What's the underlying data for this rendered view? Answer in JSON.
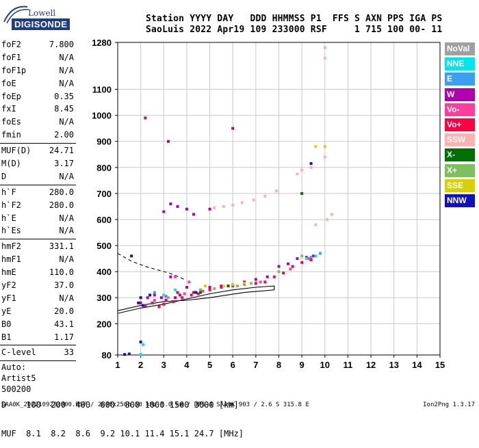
{
  "logo": {
    "line1": "Lowell",
    "line2": "DIGISONDE"
  },
  "header": {
    "line1": "Station YYYY DAY   DDD HHMMSS P1  FFS S AXN PPS IGA PS",
    "line2": "SaoLuis 2022 Apr19 109 233000 RSF     1 715 100 00- 11"
  },
  "params_group1": [
    {
      "name": "foF2",
      "value": "7.800"
    },
    {
      "name": "foF1",
      "value": "N/A"
    },
    {
      "name": "foF1p",
      "value": "N/A"
    },
    {
      "name": "foE",
      "value": "N/A"
    },
    {
      "name": "foEp",
      "value": "0.35"
    },
    {
      "name": "fxI",
      "value": "8.45"
    },
    {
      "name": "foEs",
      "value": "N/A"
    },
    {
      "name": "fmin",
      "value": "2.00"
    }
  ],
  "params_group2": [
    {
      "name": "MUF(D)",
      "value": "24.71"
    },
    {
      "name": "M(D)",
      "value": "3.17"
    },
    {
      "name": "D",
      "value": "N/A"
    }
  ],
  "params_group3": [
    {
      "name": "h`F",
      "value": "280.0"
    },
    {
      "name": "h`F2",
      "value": "280.0"
    },
    {
      "name": "h`E",
      "value": "N/A"
    },
    {
      "name": "h`Es",
      "value": "N/A"
    }
  ],
  "params_group4": [
    {
      "name": "hmF2",
      "value": "331.1"
    },
    {
      "name": "hmF1",
      "value": "N/A"
    },
    {
      "name": "hmE",
      "value": "110.0"
    },
    {
      "name": "yF2",
      "value": "37.0"
    },
    {
      "name": "yF1",
      "value": "N/A"
    },
    {
      "name": "yE",
      "value": "20.0"
    },
    {
      "name": "B0",
      "value": "43.1"
    },
    {
      "name": "B1",
      "value": "1.17"
    }
  ],
  "params_group5": [
    {
      "name": "C-level",
      "value": "33"
    }
  ],
  "auto": {
    "line1": "Auto:",
    "line2": "Artist5",
    "line3": "500200"
  },
  "legend": [
    {
      "label": "NoVal",
      "color": "#a0a0a0"
    },
    {
      "label": "NNE",
      "color": "#00e5ee"
    },
    {
      "label": "E",
      "color": "#3aa0f0"
    },
    {
      "label": "W",
      "color": "#b000b0"
    },
    {
      "label": "Vo-",
      "color": "#ff3d9a"
    },
    {
      "label": "Vo+",
      "color": "#ff0040"
    },
    {
      "label": "SSW",
      "color": "#ffb0b0"
    },
    {
      "label": "X-",
      "color": "#007000"
    },
    {
      "label": "X+",
      "color": "#7cc060"
    },
    {
      "label": "SSE",
      "color": "#d8d000"
    },
    {
      "label": "NNW",
      "color": "#1010c0"
    }
  ],
  "mufs": {
    "line1": "D    100  200  400  600  800 1000 1500 3000 [km]",
    "line2": "MUF  8.1  8.2  8.6  9.2 10.1 11.4 15.1 24.7 [MHz]"
  },
  "footer": {
    "left": "SAA0K_2022109233000.RSF / 280fx256h 50 kHz 5.0 km / DPS-4 SAA0K 903 / 2.6 S 315.8 E",
    "right": "Ion2Png 1.3.17"
  },
  "chart_data": {
    "type": "scatter",
    "title": "",
    "xlabel": "",
    "ylabel": "",
    "xlim": [
      1,
      15
    ],
    "ylim": [
      80,
      1280
    ],
    "x_ticks": [
      1,
      2,
      3,
      4,
      5,
      6,
      7,
      8,
      9,
      10,
      11,
      12,
      13,
      14,
      15
    ],
    "y_ticks": [
      80,
      200,
      300,
      400,
      500,
      600,
      700,
      800,
      900,
      1000,
      1100,
      1280
    ],
    "grid": true,
    "series": [
      {
        "name": "W",
        "color": "#b000b0",
        "points": [
          [
            2.0,
            280
          ],
          [
            2.3,
            300
          ],
          [
            2.6,
            310
          ],
          [
            2.9,
            300
          ],
          [
            3.1,
            290
          ],
          [
            3.3,
            380
          ],
          [
            3.5,
            300
          ],
          [
            3.7,
            310
          ],
          [
            4.0,
            340
          ],
          [
            4.3,
            320
          ],
          [
            4.6,
            330
          ],
          [
            5.0,
            340
          ],
          [
            5.5,
            345
          ],
          [
            6.0,
            350
          ],
          [
            6.5,
            360
          ],
          [
            7.0,
            370
          ],
          [
            7.5,
            380
          ],
          [
            8.0,
            420
          ],
          [
            8.4,
            430
          ],
          [
            8.8,
            450
          ],
          [
            9.2,
            455
          ],
          [
            9.5,
            460
          ],
          [
            3.0,
            630
          ],
          [
            3.3,
            660
          ],
          [
            3.6,
            650
          ],
          [
            4.0,
            640
          ],
          [
            4.3,
            620
          ],
          [
            5.0,
            640
          ],
          [
            2.2,
            990
          ],
          [
            3.2,
            900
          ],
          [
            6.0,
            950
          ]
        ]
      },
      {
        "name": "Vo+",
        "color": "#ff0040",
        "points": [
          [
            2.2,
            270
          ],
          [
            2.5,
            280
          ],
          [
            2.8,
            265
          ],
          [
            3.0,
            275
          ],
          [
            3.4,
            285
          ],
          [
            3.8,
            300
          ],
          [
            4.2,
            310
          ],
          [
            4.5,
            315
          ],
          [
            5.0,
            330
          ],
          [
            5.5,
            340
          ],
          [
            6.0,
            345
          ],
          [
            6.5,
            352
          ],
          [
            7.0,
            355
          ],
          [
            7.4,
            360
          ],
          [
            7.8,
            380
          ],
          [
            8.2,
            395
          ],
          [
            8.6,
            420
          ],
          [
            9.0,
            435
          ],
          [
            9.4,
            445
          ],
          [
            3.6,
            320
          ]
        ]
      },
      {
        "name": "Vo-",
        "color": "#ff3d9a",
        "points": [
          [
            2.6,
            290
          ],
          [
            3.1,
            305
          ],
          [
            3.9,
            315
          ],
          [
            4.7,
            325
          ],
          [
            5.8,
            345
          ],
          [
            7.2,
            360
          ],
          [
            8.5,
            410
          ],
          [
            9.3,
            450
          ],
          [
            3.5,
            380
          ],
          [
            4.1,
            360
          ]
        ]
      },
      {
        "name": "SSW",
        "color": "#ffb0b0",
        "points": [
          [
            6.0,
            655
          ],
          [
            6.4,
            665
          ],
          [
            6.9,
            675
          ],
          [
            7.4,
            690
          ],
          [
            7.9,
            710
          ],
          [
            8.8,
            775
          ],
          [
            9.0,
            790
          ],
          [
            9.4,
            800
          ],
          [
            10.0,
            840
          ],
          [
            10.1,
            600
          ],
          [
            10.3,
            620
          ],
          [
            9.6,
            580
          ],
          [
            10.0,
            1260
          ],
          [
            10.0,
            1220
          ],
          [
            5.2,
            645
          ],
          [
            5.6,
            650
          ]
        ]
      },
      {
        "name": "X+",
        "color": "#7cc060",
        "points": [
          [
            3.2,
            300
          ],
          [
            4.6,
            330
          ],
          [
            5.2,
            335
          ],
          [
            6.2,
            345
          ],
          [
            6.8,
            355
          ],
          [
            9.0,
            460
          ],
          [
            8.0,
            400
          ]
        ]
      },
      {
        "name": "SSE",
        "color": "#d8d000",
        "points": [
          [
            4.8,
            345
          ],
          [
            5.6,
            345
          ],
          [
            6.0,
            350
          ],
          [
            6.5,
            355
          ],
          [
            9.6,
            880
          ],
          [
            10.0,
            880
          ],
          [
            2.0,
            82
          ]
        ]
      },
      {
        "name": "NNW",
        "color": "#1010c0",
        "points": [
          [
            1.9,
            280
          ],
          [
            2.0,
            300
          ],
          [
            2.1,
            270
          ],
          [
            2.4,
            310
          ],
          [
            4.4,
            320
          ],
          [
            1.6,
            460
          ],
          [
            2.0,
            130
          ],
          [
            1.3,
            82
          ],
          [
            1.5,
            84
          ],
          [
            9.4,
            815
          ]
        ]
      },
      {
        "name": "NNE",
        "color": "#00e5ee",
        "points": [
          [
            3.0,
            310
          ],
          [
            3.5,
            330
          ],
          [
            9.2,
            450
          ],
          [
            9.6,
            460
          ],
          [
            2.1,
            120
          ],
          [
            2.0,
            82
          ]
        ]
      },
      {
        "name": "E",
        "color": "#3aa0f0",
        "points": [
          [
            9.4,
            455
          ],
          [
            9.8,
            470
          ],
          [
            2.6,
            320
          ]
        ]
      },
      {
        "name": "X-",
        "color": "#007000",
        "points": [
          [
            9.0,
            700
          ],
          [
            4.6,
            320
          ],
          [
            5.8,
            345
          ]
        ]
      }
    ],
    "lines": [
      {
        "name": "profile",
        "style": "solid",
        "points": [
          [
            1.0,
            240
          ],
          [
            2.0,
            260
          ],
          [
            3.0,
            275
          ],
          [
            4.0,
            295
          ],
          [
            5.0,
            315
          ],
          [
            6.0,
            330
          ],
          [
            7.0,
            340
          ],
          [
            7.8,
            345
          ],
          [
            7.8,
            330
          ],
          [
            6.5,
            320
          ],
          [
            5.0,
            300
          ],
          [
            4.0,
            290
          ],
          [
            3.0,
            285
          ],
          [
            2.0,
            270
          ],
          [
            1.0,
            250
          ]
        ]
      },
      {
        "name": "profile-dashed",
        "style": "dashed",
        "points": [
          [
            1.0,
            470
          ],
          [
            1.6,
            440
          ],
          [
            2.2,
            420
          ],
          [
            2.8,
            405
          ],
          [
            3.4,
            390
          ],
          [
            3.9,
            370
          ]
        ]
      }
    ]
  }
}
